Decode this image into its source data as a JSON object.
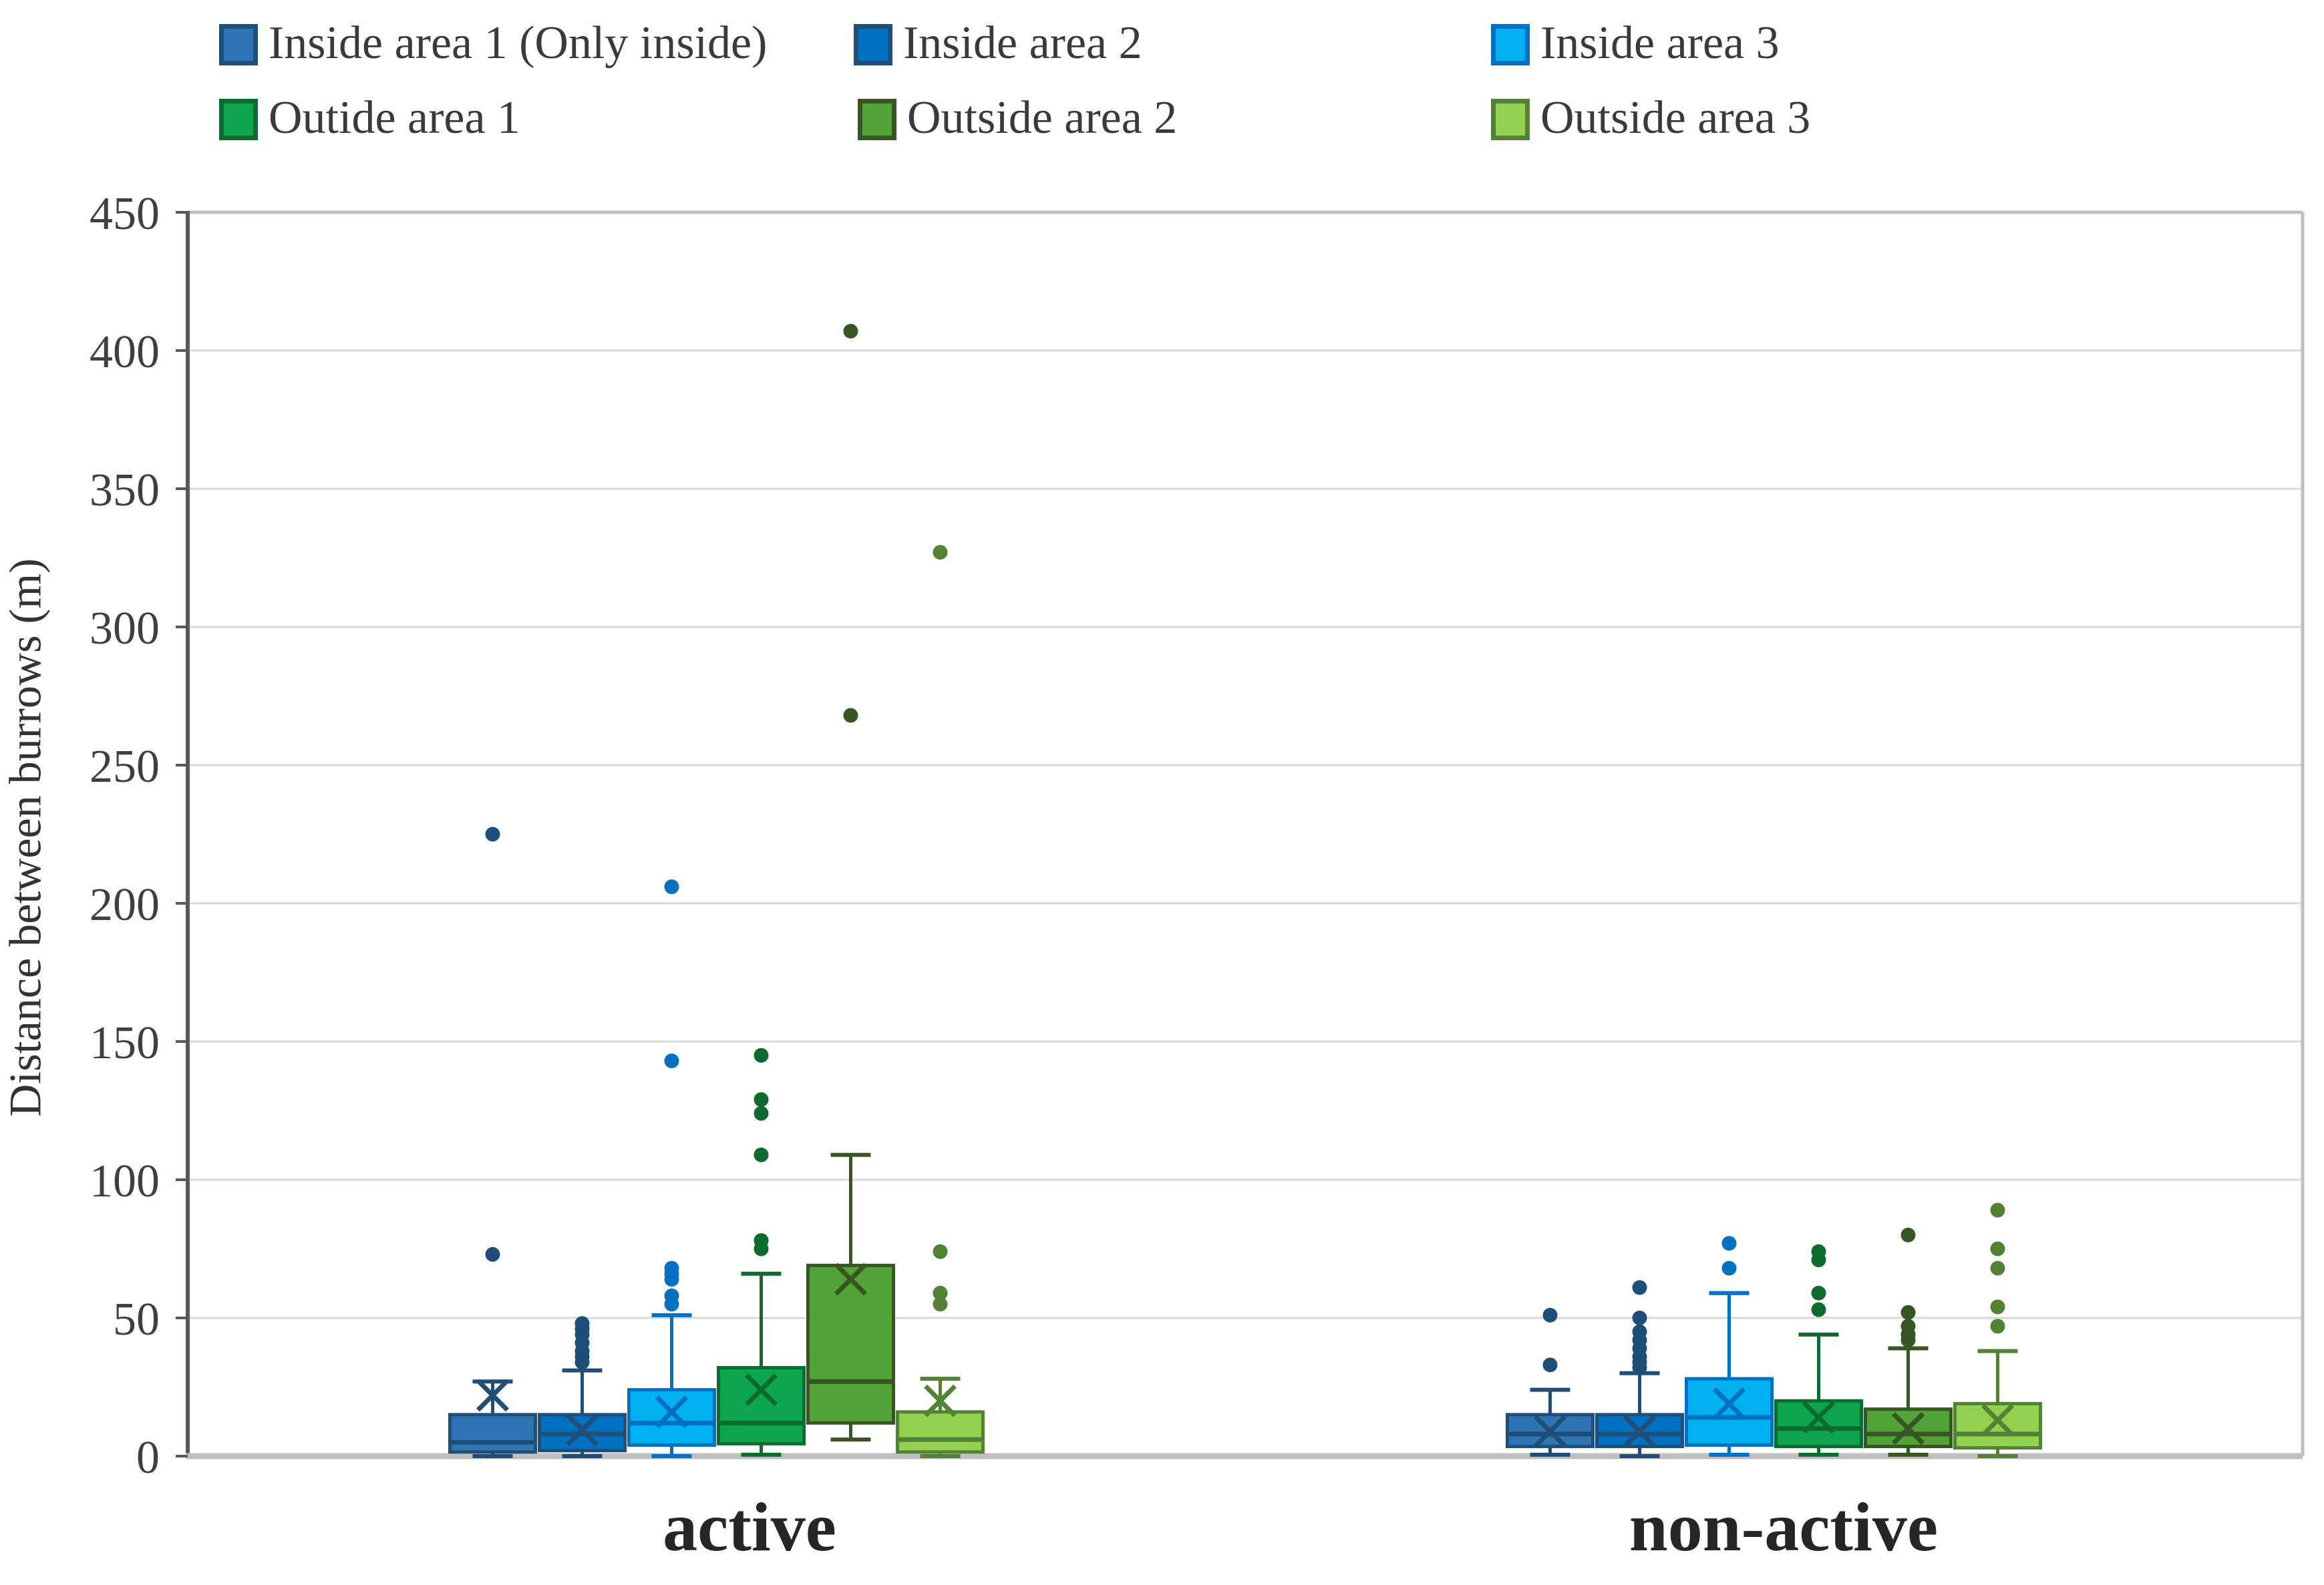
{
  "chart_data": {
    "type": "boxplot",
    "title": "",
    "ylabel": "Distance between burrows (m)",
    "xlabel": "",
    "ylim": [
      0,
      450
    ],
    "y_ticks": [
      0,
      50,
      100,
      150,
      200,
      250,
      300,
      350,
      400,
      450
    ],
    "grid": "horizontal",
    "legend_position": "top",
    "categories": [
      "active",
      "non-active"
    ],
    "colors": {
      "gridline": "#D9D9D9",
      "plot_border": "#BFBFBF",
      "y_axis_line": "#595959",
      "x_axis_line": "#BFBFBF",
      "tick_text": "#3F3F3F",
      "category_text": "#262626"
    },
    "series": [
      {
        "name": "Inside area 1 (Only inside)",
        "fill": "#2E75B6",
        "border": "#1F4E79",
        "boxes": [
          {
            "category": "active",
            "min": 0,
            "q1": 1.5,
            "median": 5,
            "q3": 15,
            "max": 27,
            "mean": 22,
            "outliers": [
              73,
              225
            ]
          },
          {
            "category": "non-active",
            "min": 0.5,
            "q1": 3.5,
            "median": 8,
            "q3": 15,
            "max": 24,
            "mean": 9,
            "outliers": [
              33,
              51
            ]
          }
        ]
      },
      {
        "name": "Inside area 2",
        "fill": "#0070C0",
        "border": "#1F4E79",
        "boxes": [
          {
            "category": "active",
            "min": 0,
            "q1": 2,
            "median": 8,
            "q3": 15,
            "max": 31,
            "mean": 9.5,
            "outliers": [
              34,
              36,
              38,
              41,
              44,
              46,
              48
            ]
          },
          {
            "category": "non-active",
            "min": 0,
            "q1": 3.5,
            "median": 8,
            "q3": 15,
            "max": 30,
            "mean": 9,
            "outliers": [
              32,
              34,
              36,
              39,
              42,
              45,
              50,
              61
            ]
          }
        ]
      },
      {
        "name": "Inside area 3",
        "fill": "#00B0F0",
        "border": "#0070C0",
        "boxes": [
          {
            "category": "active",
            "min": 0,
            "q1": 4,
            "median": 12,
            "q3": 24,
            "max": 51,
            "mean": 16,
            "outliers": [
              55,
              58,
              64,
              66,
              68,
              143,
              206
            ]
          },
          {
            "category": "non-active",
            "min": 0.5,
            "q1": 4,
            "median": 14,
            "q3": 28,
            "max": 59,
            "mean": 19,
            "outliers": [
              68,
              77
            ]
          }
        ]
      },
      {
        "name": "Outide area 1",
        "fill": "#0DA64F",
        "border": "#0E6B30",
        "boxes": [
          {
            "category": "active",
            "min": 0.5,
            "q1": 4.5,
            "median": 12,
            "q3": 32,
            "max": 66,
            "mean": 24,
            "outliers": [
              75,
              78,
              109,
              124,
              129,
              145
            ]
          },
          {
            "category": "non-active",
            "min": 0.5,
            "q1": 3.5,
            "median": 10,
            "q3": 20,
            "max": 44,
            "mean": 14,
            "outliers": [
              53,
              59,
              71,
              74
            ]
          }
        ]
      },
      {
        "name": "Outside area 2",
        "fill": "#53A437",
        "border": "#375623",
        "boxes": [
          {
            "category": "active",
            "min": 6,
            "q1": 12,
            "median": 27,
            "q3": 69,
            "max": 109,
            "mean": 64,
            "outliers": [
              268,
              407
            ]
          },
          {
            "category": "non-active",
            "min": 0.5,
            "q1": 3.5,
            "median": 8,
            "q3": 17,
            "max": 39,
            "mean": 10,
            "outliers": [
              42,
              44,
              47,
              52,
              80
            ]
          }
        ]
      },
      {
        "name": "Outside area 3",
        "fill": "#92D050",
        "border": "#538135",
        "boxes": [
          {
            "category": "active",
            "min": 0,
            "q1": 1.5,
            "median": 6,
            "q3": 16,
            "max": 28,
            "mean": 20,
            "outliers": [
              55,
              59,
              74,
              327
            ]
          },
          {
            "category": "non-active",
            "min": 0,
            "q1": 3,
            "median": 8,
            "q3": 19,
            "max": 38,
            "mean": 13,
            "outliers": [
              47,
              54,
              68,
              75,
              89
            ]
          }
        ]
      }
    ]
  },
  "legend": {
    "items": [
      {
        "label": "Inside area 1 (Only inside)"
      },
      {
        "label": "Inside area 2"
      },
      {
        "label": "Inside area 3"
      },
      {
        "label": "Outide area 1"
      },
      {
        "label": "Outside area 2"
      },
      {
        "label": "Outside area 3"
      }
    ]
  }
}
